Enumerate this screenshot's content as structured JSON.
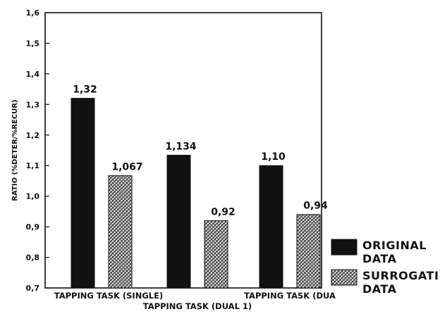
{
  "chart_data": {
    "type": "bar",
    "ylabel": "RATIO (%DETER/%RECUR)",
    "ylim": [
      0.7,
      1.6
    ],
    "yticks": [
      "0,7",
      "0,8",
      "0,9",
      "1,0",
      "1,1",
      "1,2",
      "1,3",
      "1,4",
      "1,5",
      "1,6"
    ],
    "categories": [
      "TAPPING TASK (SINGLE)",
      "TAPPING TASK (DUAL 1)",
      "TAPPING TASK (DUA"
    ],
    "series": [
      {
        "name": "ORIGINAL DATA",
        "legend_lines": [
          "ORIGINAL",
          "DATA"
        ],
        "color": "#111111",
        "values": [
          1.32,
          1.134,
          1.1
        ],
        "labels": [
          "1,32",
          "1,134",
          "1,10"
        ]
      },
      {
        "name": "SURROGATE DATA",
        "legend_lines": [
          "SURROGATI",
          "DATA"
        ],
        "color": "#cccccc",
        "values": [
          1.067,
          0.92,
          0.94
        ],
        "labels": [
          "1,067",
          "0,92",
          "0,94"
        ]
      }
    ],
    "grid": false,
    "legend_position": "bottom-right"
  }
}
